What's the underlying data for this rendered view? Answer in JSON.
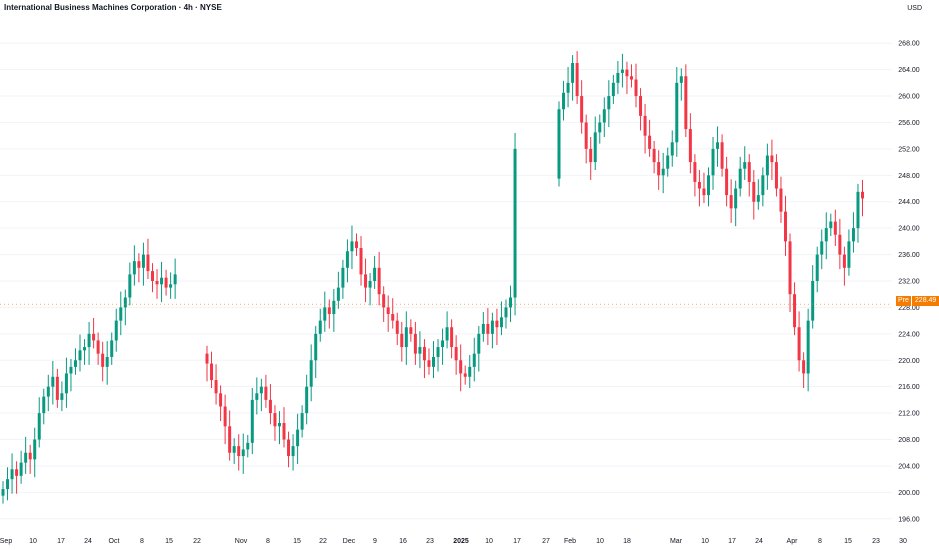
{
  "header": {
    "title": "International Business Machines Corporation · 4h · NYSE",
    "currency": "USD"
  },
  "colors": {
    "up": "#089981",
    "down": "#f23645",
    "grid": "#f0f3fa",
    "pre": "#f57c00"
  },
  "premarket": {
    "tag": "Pre",
    "value": "228.49"
  },
  "chart_data": {
    "type": "candlestick",
    "timeframe": "4h",
    "ylim": [
      194,
      270
    ],
    "y_ticks": [
      196,
      200,
      204,
      208,
      212,
      216,
      220,
      224,
      228,
      232,
      236,
      240,
      244,
      248,
      252,
      256,
      260,
      264,
      268
    ],
    "x_ticks": [
      {
        "label": "Sep",
        "bold": false
      },
      {
        "label": "10",
        "bold": false
      },
      {
        "label": "17",
        "bold": false
      },
      {
        "label": "24",
        "bold": false
      },
      {
        "label": "Oct",
        "bold": false
      },
      {
        "label": "8",
        "bold": false
      },
      {
        "label": "15",
        "bold": false
      },
      {
        "label": "22",
        "bold": false
      },
      {
        "label": "Nov",
        "bold": false
      },
      {
        "label": "8",
        "bold": false
      },
      {
        "label": "15",
        "bold": false
      },
      {
        "label": "22",
        "bold": false
      },
      {
        "label": "Dec",
        "bold": false
      },
      {
        "label": "9",
        "bold": false
      },
      {
        "label": "16",
        "bold": false
      },
      {
        "label": "23",
        "bold": false
      },
      {
        "label": "2025",
        "bold": true
      },
      {
        "label": "10",
        "bold": false
      },
      {
        "label": "17",
        "bold": false
      },
      {
        "label": "27",
        "bold": false
      },
      {
        "label": "Feb",
        "bold": false
      },
      {
        "label": "10",
        "bold": false
      },
      {
        "label": "18",
        "bold": false
      },
      {
        "label": "Mar",
        "bold": false
      },
      {
        "label": "10",
        "bold": false
      },
      {
        "label": "17",
        "bold": false
      },
      {
        "label": "24",
        "bold": false
      },
      {
        "label": "Apr",
        "bold": false
      },
      {
        "label": "8",
        "bold": false
      },
      {
        "label": "15",
        "bold": false
      },
      {
        "label": "23",
        "bold": false
      },
      {
        "label": "30",
        "bold": false
      }
    ],
    "closes": [
      200.5,
      202.0,
      203.5,
      202.5,
      204.5,
      206.0,
      205.0,
      208.0,
      212.0,
      214.5,
      216.0,
      217.5,
      214.0,
      215.0,
      218.0,
      219.0,
      220.0,
      221.5,
      222.0,
      224.0,
      223.0,
      221.0,
      219.0,
      220.5,
      223.0,
      226.0,
      228.0,
      229.5,
      233.0,
      235.0,
      234.0,
      236.0,
      233.5,
      232.0,
      231.5,
      232.5,
      231.0,
      231.5,
      233.0,
      219.5,
      217.0,
      215.0,
      213.0,
      210.0,
      206.0,
      207.0,
      205.5,
      206.5,
      207.5,
      214.0,
      215.0,
      216.0,
      214.0,
      212.0,
      210.0,
      210.5,
      208.0,
      205.5,
      207.0,
      209.5,
      212.0,
      216.0,
      220.0,
      224.0,
      226.0,
      228.0,
      227.0,
      229.0,
      231.0,
      234.0,
      236.5,
      238.0,
      237.0,
      233.0,
      231.0,
      232.0,
      234.0,
      230.0,
      228.0,
      227.0,
      226.0,
      224.0,
      222.0,
      225.0,
      224.0,
      221.0,
      222.0,
      220.0,
      219.0,
      220.5,
      222.0,
      223.0,
      225.0,
      222.0,
      220.0,
      218.0,
      217.5,
      219.0,
      221.0,
      224.0,
      225.5,
      224.0,
      226.0,
      225.0,
      226.5,
      228.0,
      229.5,
      252.0,
      258.0,
      260.5,
      262.0,
      265.0,
      260.0,
      256.0,
      252.0,
      250.0,
      254.5,
      256.0,
      258.0,
      260.0,
      262.0,
      263.5,
      264.0,
      263.0,
      262.5,
      260.0,
      257.0,
      254.0,
      252.0,
      250.0,
      248.0,
      249.0,
      251.0,
      253.0,
      262.0,
      263.0,
      255.0,
      250.0,
      247.0,
      246.0,
      245.0,
      248.0,
      252.0,
      253.0,
      249.0,
      245.0,
      243.0,
      246.0,
      249.0,
      250.0,
      247.0,
      244.0,
      245.0,
      248.0,
      251.0,
      250.0,
      246.0,
      242.5,
      238.0,
      230.0,
      225.0,
      220.0,
      218.0,
      226.0,
      232.0,
      236.0,
      238.0,
      240.0,
      241.0,
      239.0,
      236.0,
      234.0,
      238.0,
      240.0,
      245.5,
      244.5
    ],
    "premarket_price": 228.49
  }
}
